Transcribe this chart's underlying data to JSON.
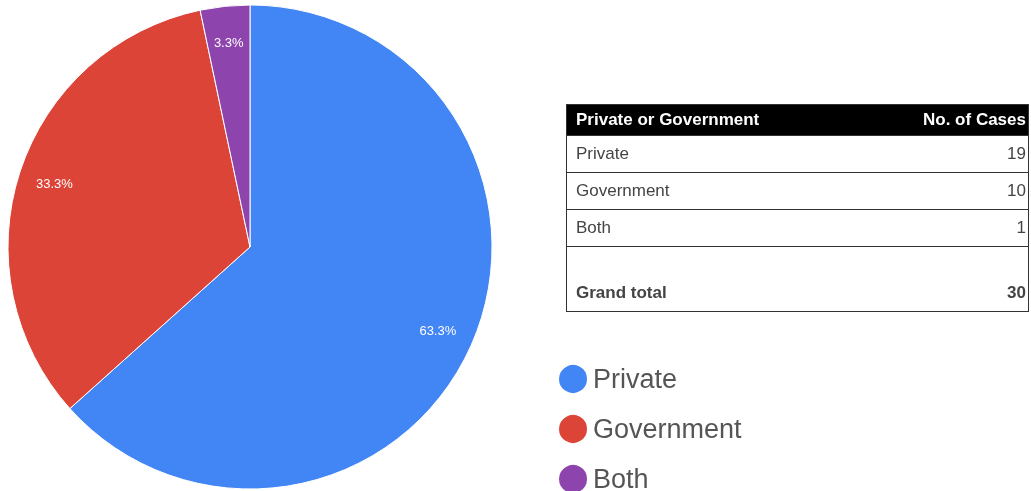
{
  "chart_data": {
    "type": "pie",
    "categories": [
      "Private",
      "Government",
      "Both"
    ],
    "values": [
      63.3,
      33.3,
      3.3
    ],
    "colors": [
      "#4285f4",
      "#db4437",
      "#8e44ad"
    ],
    "value_labels": [
      "63.3%",
      "33.3%",
      "3.3%"
    ],
    "legend": "bottom right",
    "annotations": [
      "Private or Government",
      "No. of Cases",
      "Private",
      "19",
      "Government",
      "10",
      "Both",
      "1",
      "Grand total",
      "30"
    ]
  }
}
